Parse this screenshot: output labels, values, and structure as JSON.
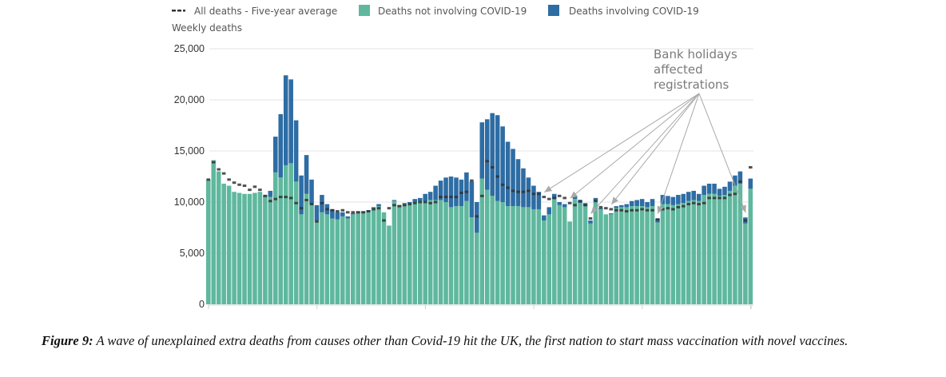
{
  "chart_data": {
    "type": "bar",
    "stacked": true,
    "title": "",
    "ylabel": "Weekly deaths",
    "xlabel": "",
    "ylim": [
      0,
      25000
    ],
    "yticks": [
      0,
      5000,
      10000,
      15000,
      20000,
      25000
    ],
    "ytick_labels": [
      "0",
      "5,000",
      "10,000",
      "15,000",
      "20,000",
      "25,000"
    ],
    "grid": true,
    "legend_position": "top",
    "legend": [
      {
        "key": "avg",
        "label": "All deaths - Five-year average",
        "style": "dashed-marker",
        "color": "#333333"
      },
      {
        "key": "non_covid",
        "label": "Deaths not involving COVID-19",
        "color": "#5fb89e"
      },
      {
        "key": "covid",
        "label": "Deaths involving COVID-19",
        "color": "#2e6da4"
      }
    ],
    "x_tick_every": 21,
    "series": [
      {
        "name": "Deaths not involving COVID-19",
        "key": "non_covid",
        "values": [
          12200,
          14100,
          13000,
          11800,
          11600,
          11000,
          10900,
          10800,
          10800,
          10900,
          11000,
          10700,
          10500,
          12900,
          12400,
          13600,
          13800,
          12000,
          8800,
          10800,
          9800,
          8200,
          9000,
          8800,
          8400,
          8300,
          8600,
          8400,
          8800,
          9000,
          9000,
          9100,
          9400,
          9600,
          9000,
          7700,
          10100,
          9600,
          9800,
          9900,
          10000,
          10100,
          10100,
          10200,
          10200,
          10200,
          10000,
          9500,
          9600,
          9600,
          10100,
          8500,
          7000,
          12300,
          11200,
          10600,
          10100,
          10000,
          9600,
          9600,
          9600,
          9500,
          9500,
          9300,
          9300,
          8200,
          8800,
          10300,
          9700,
          9500,
          8100,
          10300,
          9900,
          9600,
          7900,
          10100,
          9300,
          8800,
          8800,
          9400,
          9500,
          9500,
          9600,
          9600,
          9600,
          9500,
          9600,
          8000,
          9800,
          9800,
          9700,
          9800,
          9900,
          10100,
          10200,
          10100,
          10700,
          10800,
          10800,
          10600,
          10700,
          11100,
          11600,
          11800,
          7900,
          11300
        ]
      },
      {
        "name": "Deaths involving COVID-19",
        "key": "covid",
        "values": [
          0,
          0,
          0,
          0,
          0,
          0,
          0,
          0,
          0,
          0,
          0,
          0,
          600,
          3500,
          6200,
          8800,
          8200,
          6000,
          3800,
          3800,
          2400,
          1500,
          1700,
          1000,
          900,
          700,
          400,
          200,
          100,
          100,
          100,
          100,
          100,
          200,
          0,
          0,
          100,
          100,
          100,
          100,
          300,
          300,
          700,
          800,
          1400,
          1900,
          2400,
          3000,
          2800,
          2600,
          2800,
          3500,
          3000,
          5500,
          6900,
          8100,
          8400,
          7400,
          6300,
          5600,
          4600,
          3800,
          2900,
          2300,
          1700,
          500,
          700,
          500,
          300,
          300,
          0,
          300,
          300,
          300,
          300,
          300,
          100,
          0,
          100,
          200,
          200,
          300,
          500,
          600,
          700,
          500,
          700,
          400,
          900,
          800,
          800,
          900,
          900,
          900,
          900,
          700,
          900,
          1000,
          1000,
          700,
          800,
          900,
          1000,
          1200,
          600,
          1000
        ]
      },
      {
        "name": "All deaths - Five-year average",
        "key": "avg",
        "values": [
          12200,
          13900,
          13200,
          12800,
          12200,
          11900,
          11700,
          11600,
          11200,
          11500,
          11200,
          10600,
          10100,
          10300,
          10500,
          10500,
          10400,
          9900,
          9400,
          10200,
          9800,
          8100,
          9900,
          9300,
          9200,
          9100,
          9200,
          9000,
          9000,
          9000,
          9000,
          9100,
          9300,
          9400,
          8200,
          9400,
          9700,
          9600,
          9700,
          9800,
          9900,
          10000,
          10000,
          9900,
          10000,
          10500,
          10500,
          10500,
          10500,
          10900,
          11000,
          12100,
          8600,
          10600,
          14000,
          13400,
          12500,
          11700,
          11400,
          11100,
          11000,
          11000,
          11100,
          10800,
          10800,
          10500,
          10300,
          10400,
          10600,
          10400,
          9900,
          9700,
          10100,
          9700,
          8400,
          10100,
          9500,
          9400,
          9300,
          9200,
          9200,
          9100,
          9200,
          9200,
          9300,
          9200,
          9200,
          8300,
          9300,
          9400,
          9300,
          9500,
          9600,
          9800,
          9900,
          9800,
          9900,
          10400,
          10400,
          10400,
          10400,
          10700,
          10800,
          12000,
          8200,
          13400
        ]
      }
    ],
    "annotations": [
      {
        "text_lines": [
          "Bank holidays",
          "affected",
          "registrations"
        ],
        "points_to_bar_indices": [
          65,
          70,
          74,
          78,
          87,
          104
        ]
      }
    ]
  },
  "caption": {
    "label": "Figure 9:",
    "text": " A wave of unexplained extra deaths from causes other than Covid-19 hit the UK, the first nation to start mass vaccination with novel vaccines."
  }
}
